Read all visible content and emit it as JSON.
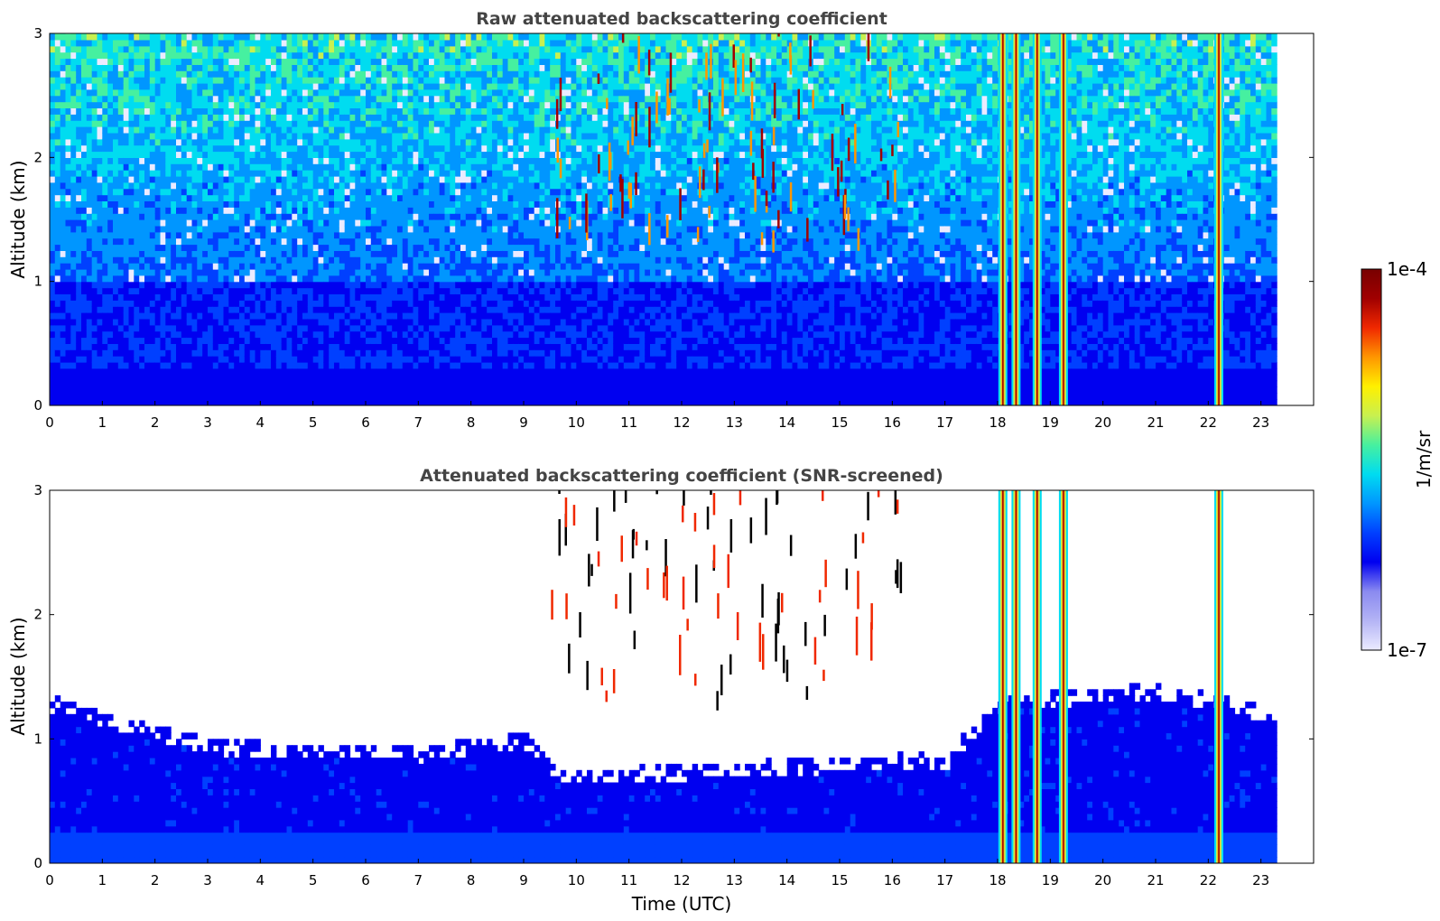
{
  "colors": {
    "colormap": [
      "#ebebff",
      "#b4b4f5",
      "#8a8af0",
      "#0000f0",
      "#0040ff",
      "#0096ff",
      "#00dcf0",
      "#46f0a0",
      "#c8f050",
      "#fff000",
      "#ff9600",
      "#f02800",
      "#a00000",
      "#780000"
    ],
    "title": "#444444",
    "frame": "#000000",
    "background": "#ffffff"
  },
  "chart_data": [
    {
      "type": "heatmap",
      "title": "Raw attenuated backscattering coefficient",
      "xlabel": "",
      "ylabel": "Altitude (km)",
      "xlim": [
        0,
        24
      ],
      "ylim": [
        0,
        3
      ],
      "x_ticks": [
        "0",
        "1",
        "2",
        "3",
        "4",
        "5",
        "6",
        "7",
        "8",
        "9",
        "10",
        "11",
        "12",
        "13",
        "14",
        "15",
        "16",
        "17",
        "18",
        "19",
        "20",
        "21",
        "22",
        "23"
      ],
      "y_ticks": [
        "0",
        "1",
        "2",
        "3"
      ],
      "data_end_time": 23.3,
      "features": {
        "boundary_layer_top_km": 0.3,
        "noise_level": "high",
        "precip_columns_utc": [
          18.1,
          18.35,
          18.75,
          19.25,
          22.2
        ],
        "cloud_band_utc": [
          9.5,
          16.2
        ],
        "cloud_band_alt_km": [
          1.2,
          3.0
        ]
      }
    },
    {
      "type": "heatmap",
      "title": "Attenuated backscattering coefficient (SNR-screened)",
      "xlabel": "Time (UTC)",
      "ylabel": "Altitude (km)",
      "xlim": [
        0,
        24
      ],
      "ylim": [
        0,
        3
      ],
      "x_ticks": [
        "0",
        "1",
        "2",
        "3",
        "4",
        "5",
        "6",
        "7",
        "8",
        "9",
        "10",
        "11",
        "12",
        "13",
        "14",
        "15",
        "16",
        "17",
        "18",
        "19",
        "20",
        "21",
        "22",
        "23"
      ],
      "y_ticks": [
        "0",
        "1",
        "2",
        "3"
      ],
      "data_end_time": 23.3,
      "features": {
        "aerosol_layer_top_km": [
          [
            0,
            1.2
          ],
          [
            3,
            0.85
          ],
          [
            7,
            0.8
          ],
          [
            9,
            0.9
          ],
          [
            9.6,
            0.6
          ],
          [
            17,
            0.75
          ],
          [
            18,
            1.2
          ],
          [
            21,
            1.3
          ],
          [
            23.3,
            1.1
          ]
        ],
        "precip_columns_utc": [
          18.1,
          18.35,
          18.75,
          19.25,
          22.2
        ],
        "cloud_band_utc": [
          9.5,
          16.2
        ],
        "cloud_band_alt_km": [
          1.2,
          3.0
        ]
      }
    }
  ],
  "colorbar": {
    "label": "1/m/sr",
    "max_label": "1e-4",
    "min_label": "1e-7",
    "scale": "log",
    "range": [
      1e-07,
      0.0001
    ]
  }
}
